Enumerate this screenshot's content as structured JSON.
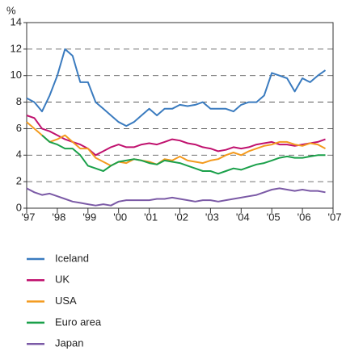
{
  "chart_data": {
    "type": "line",
    "y_label": "%",
    "x": [
      1997.0,
      1997.25,
      1997.5,
      1997.75,
      1998.0,
      1998.25,
      1998.5,
      1998.75,
      1999.0,
      1999.25,
      1999.5,
      1999.75,
      2000.0,
      2000.25,
      2000.5,
      2000.75,
      2001.0,
      2001.25,
      2001.5,
      2001.75,
      2002.0,
      2002.25,
      2002.5,
      2002.75,
      2003.0,
      2003.25,
      2003.5,
      2003.75,
      2004.0,
      2004.25,
      2004.5,
      2004.75,
      2005.0,
      2005.25,
      2005.5,
      2005.75,
      2006.0,
      2006.25,
      2006.5,
      2006.75
    ],
    "series": [
      {
        "name": "Iceland",
        "color": "#3a7bbf",
        "values": [
          8.3,
          8.0,
          7.3,
          8.5,
          10,
          12.0,
          11.5,
          9.5,
          9.5,
          8.0,
          7.5,
          7.0,
          6.5,
          6.2,
          6.5,
          7.0,
          7.5,
          7.0,
          7.5,
          7.5,
          7.8,
          7.7,
          7.8,
          8.0,
          7.5,
          7.5,
          7.5,
          7.3,
          7.8,
          8.0,
          8.0,
          8.5,
          10.2,
          10.0,
          9.8,
          8.8,
          9.8,
          9.5,
          10.0,
          10.4
        ]
      },
      {
        "name": "UK",
        "color": "#c0116e",
        "values": [
          7.0,
          6.8,
          6.0,
          5.8,
          5.5,
          5.2,
          5.0,
          4.8,
          4.5,
          4.0,
          4.3,
          4.6,
          4.8,
          4.6,
          4.6,
          4.8,
          4.9,
          4.8,
          5.0,
          5.2,
          5.1,
          4.9,
          4.8,
          4.6,
          4.5,
          4.3,
          4.4,
          4.6,
          4.5,
          4.6,
          4.8,
          4.9,
          5.0,
          4.8,
          4.8,
          4.7,
          4.8,
          4.9,
          5.0,
          5.2
        ]
      },
      {
        "name": "USA",
        "color": "#f39a1e",
        "values": [
          6.5,
          6.0,
          5.5,
          5.0,
          5.2,
          5.5,
          5.0,
          4.5,
          4.5,
          3.8,
          3.5,
          3.2,
          3.5,
          3.4,
          3.7,
          3.6,
          3.5,
          3.3,
          3.7,
          3.6,
          3.9,
          3.6,
          3.5,
          3.4,
          3.6,
          3.7,
          4.0,
          4.2,
          4.0,
          4.3,
          4.5,
          4.7,
          4.8,
          5.0,
          5.0,
          4.8,
          4.7,
          4.9,
          4.8,
          4.5
        ]
      },
      {
        "name": "Euro area",
        "color": "#1aa04a",
        "values": [
          null,
          null,
          5.5,
          5.0,
          4.8,
          4.5,
          4.5,
          4.0,
          3.2,
          3.0,
          2.8,
          3.2,
          3.5,
          3.6,
          3.7,
          3.6,
          3.4,
          3.3,
          3.6,
          3.5,
          3.4,
          3.2,
          3.0,
          2.8,
          2.8,
          2.6,
          2.8,
          3.0,
          2.9,
          3.1,
          3.3,
          3.4,
          3.6,
          3.8,
          3.9,
          3.8,
          3.8,
          3.9,
          4.0,
          4.0
        ]
      },
      {
        "name": "Japan",
        "color": "#7b5aa6",
        "values": [
          1.5,
          1.2,
          1.0,
          1.1,
          0.9,
          0.7,
          0.5,
          0.4,
          0.3,
          0.2,
          0.3,
          0.2,
          0.5,
          0.6,
          0.6,
          0.6,
          0.6,
          0.7,
          0.7,
          0.8,
          0.7,
          0.6,
          0.5,
          0.6,
          0.6,
          0.5,
          0.6,
          0.7,
          0.8,
          0.9,
          1.0,
          1.2,
          1.4,
          1.5,
          1.4,
          1.3,
          1.4,
          1.3,
          1.3,
          1.2
        ]
      }
    ],
    "xlim": [
      1997,
      2007
    ],
    "xticks": [
      {
        "value": 1997,
        "label": "'97"
      },
      {
        "value": 1998,
        "label": "'98"
      },
      {
        "value": 1999,
        "label": "'99"
      },
      {
        "value": 2000,
        "label": "'00"
      },
      {
        "value": 2001,
        "label": "'01"
      },
      {
        "value": 2002,
        "label": "'02"
      },
      {
        "value": 2003,
        "label": "'03"
      },
      {
        "value": 2004,
        "label": "'04"
      },
      {
        "value": 2005,
        "label": "'05"
      },
      {
        "value": 2006,
        "label": "'06"
      },
      {
        "value": 2007,
        "label": "'07"
      }
    ],
    "ylim": [
      0,
      14
    ],
    "yticks": [
      0,
      2,
      4,
      6,
      8,
      10,
      12,
      14
    ],
    "grid": true
  }
}
